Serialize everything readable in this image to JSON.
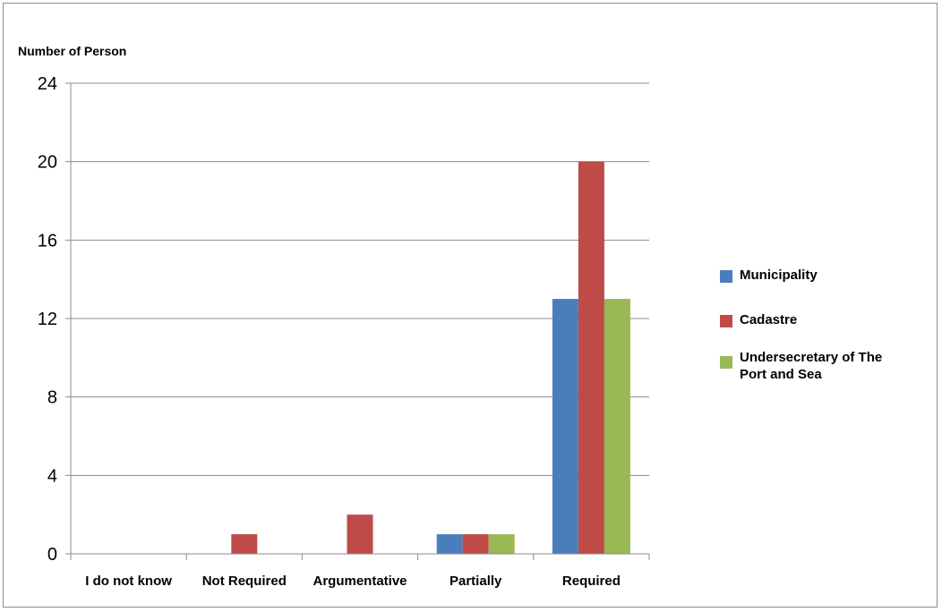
{
  "chart_data": {
    "type": "bar",
    "ylabel": "Number of Person",
    "xlabel": "",
    "categories": [
      "I do not know",
      "Not Required",
      "Argumentative",
      "Partially",
      "Required"
    ],
    "ylim": [
      0,
      24
    ],
    "yticks": [
      0,
      4,
      8,
      12,
      16,
      20,
      24
    ],
    "grid": true,
    "legend_position": "right",
    "series": [
      {
        "name": "Municipality",
        "color": "#4a7ebb",
        "values": [
          0,
          0,
          0,
          1,
          13
        ]
      },
      {
        "name": "Cadastre",
        "color": "#be4b48",
        "values": [
          0,
          1,
          2,
          1,
          20
        ]
      },
      {
        "name": "Undersecretary of The Port and Sea",
        "legend_lines": [
          "Undersecretary of The",
          "Port and Sea"
        ],
        "color": "#98b954",
        "values": [
          0,
          0,
          0,
          1,
          13
        ]
      }
    ]
  }
}
